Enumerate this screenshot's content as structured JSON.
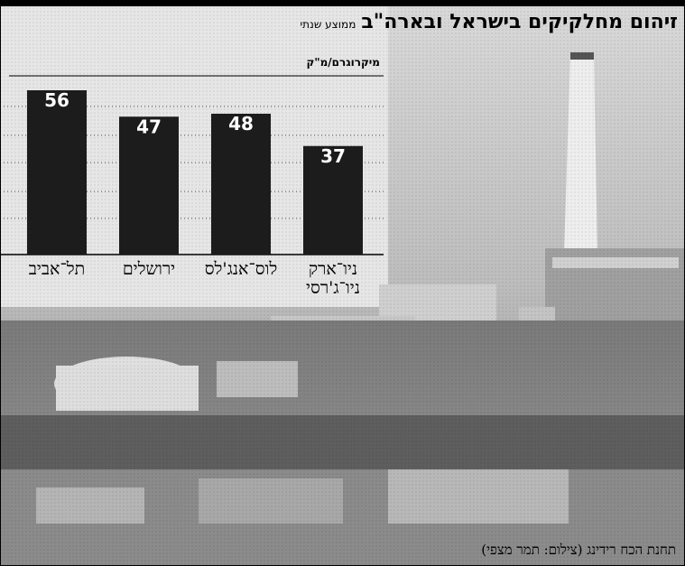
{
  "chart_data": {
    "type": "bar",
    "title": "זיהום מחלקיקים בישראל ובארה\"ב",
    "subtitle": "ממוצע שנתי",
    "y_label": "מיקרוגרם/מ\"ק",
    "categories": [
      "תל־אביב",
      "ירושלים",
      "לוס־אנג'לס",
      "ניו־ארק\nניו־ג'רסי"
    ],
    "values": [
      56,
      47,
      48,
      37
    ],
    "color": "#1c1c1c",
    "ylim": [
      0,
      60
    ],
    "caption": "תחנת הכח רידינג (צילום: תמר מצפי)"
  }
}
